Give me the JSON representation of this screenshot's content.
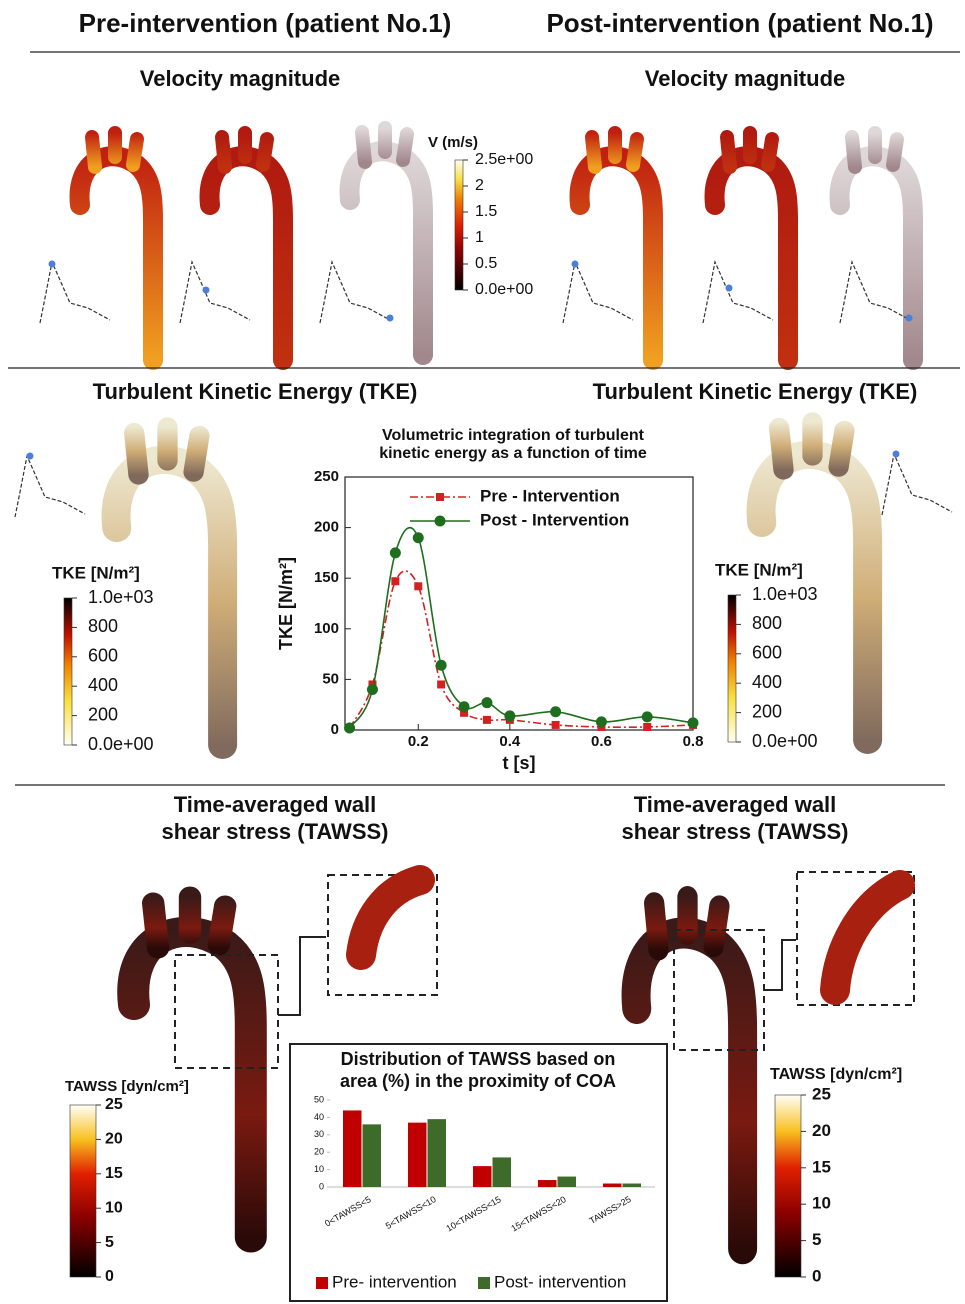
{
  "texts": {
    "pre_header": "Pre-intervention (patient No.1)",
    "post_header": "Post-intervention (patient No.1)",
    "velocity_pre": "Velocity magnitude",
    "velocity_post": "Velocity magnitude",
    "tke_pre": "Turbulent Kinetic Energy (TKE)",
    "tke_post": "Turbulent Kinetic Energy (TKE)",
    "tawss_pre": [
      "Time-averaged wall",
      "shear stress (TAWSS)"
    ],
    "tawss_post": [
      "Time-averaged wall",
      "shear stress (TAWSS)"
    ]
  },
  "colorbars": [
    {
      "title": "V (m/s)",
      "lim": [
        0,
        2.5
      ],
      "ticks": [
        {
          "value": 2.5,
          "label": "2.5e+00"
        },
        2,
        1.5,
        1,
        0.5,
        {
          "value": 0,
          "label": "0.0e+00"
        }
      ]
    },
    {
      "title": "TKE [N/m²]",
      "lim": [
        0,
        1000
      ],
      "ticks": [
        {
          "value": 1000,
          "label": "1.0e+03"
        },
        800,
        600,
        400,
        200,
        {
          "value": 0,
          "label": "0.0e+00"
        }
      ]
    },
    {
      "title": "TKE [N/m²]",
      "lim": [
        0,
        1000
      ],
      "ticks": [
        {
          "value": 1000,
          "label": "1.0e+03"
        },
        800,
        600,
        400,
        200,
        {
          "value": 0,
          "label": "0.0e+00"
        }
      ]
    },
    {
      "title": "TAWSS [dyn/cm²]",
      "lim": [
        0,
        25
      ],
      "ticks": [
        25,
        20,
        15,
        10,
        5,
        0
      ]
    },
    {
      "title": "TAWSS [dyn/cm²]",
      "lim": [
        0,
        25
      ],
      "ticks": [
        25,
        20,
        15,
        10,
        5,
        0
      ]
    }
  ],
  "chart_data": [
    {
      "type": "line",
      "title": [
        "Volumetric integration of turbulent",
        "kinetic energy as a function of time"
      ],
      "x_label": "t [s]",
      "y_label": "TKE [N/m²]",
      "x": [
        0.05,
        0.1,
        0.15,
        0.2,
        0.25,
        0.3,
        0.35,
        0.4,
        0.5,
        0.6,
        0.7,
        0.8
      ],
      "series": [
        {
          "name": "Pre - Intervention",
          "color": "#d42020",
          "linestyle": "dashdot",
          "marker": "square",
          "values": [
            2,
            45,
            147,
            142,
            45,
            17,
            10,
            10,
            5,
            3,
            3,
            5
          ]
        },
        {
          "name": "Post - Intervention",
          "color": "#1f6e1f",
          "linestyle": "solid",
          "marker": "circle",
          "values": [
            2,
            40,
            175,
            190,
            64,
            23,
            27,
            14,
            18,
            8,
            13,
            7
          ]
        }
      ],
      "xlim": [
        0.04,
        0.8
      ],
      "xticks": [
        0.2,
        0.4,
        0.6,
        0.8
      ],
      "ylim": [
        0,
        250
      ],
      "yticks": [
        0,
        50,
        100,
        150,
        200,
        250
      ],
      "legend": "upper right"
    },
    {
      "type": "bar",
      "title": [
        "Distribution of TAWSS based on",
        "area (%) in the proximity of COA"
      ],
      "categories": [
        "0<TAWSS<5",
        "5<TAWSS<10",
        "10<TAWSS<15",
        "15<TAWSS<20",
        "TAWSS>25"
      ],
      "series": [
        {
          "name": "Pre- intervention",
          "color": "#c00000",
          "values": [
            44,
            37,
            12,
            4,
            2
          ]
        },
        {
          "name": "Post- intervention",
          "color": "#3d6b2a",
          "values": [
            36,
            39,
            17,
            6,
            2
          ]
        }
      ],
      "ylim": [
        0,
        50
      ],
      "yticks": [
        0,
        10,
        20,
        30,
        40,
        50
      ],
      "legend": "bottom"
    }
  ]
}
